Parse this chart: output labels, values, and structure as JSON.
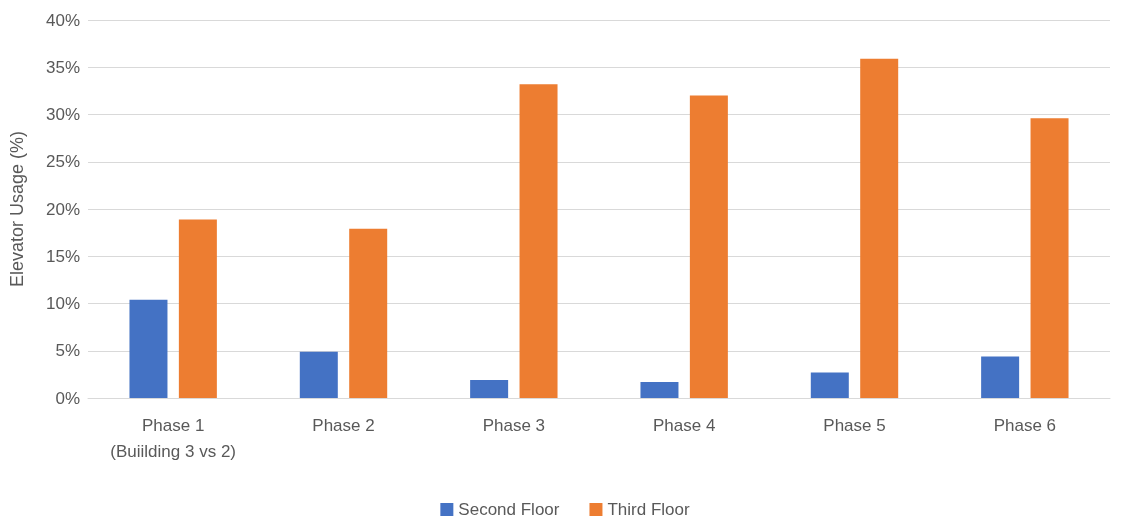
{
  "chart_data": {
    "type": "bar",
    "ylabel": "Elevator Usage (%)",
    "categories": [
      "Phase 1\n(Buiilding 3 vs 2)",
      "Phase 2",
      "Phase 3",
      "Phase 4",
      "Phase 5",
      "Phase 6"
    ],
    "series": [
      {
        "name": "Second Floor",
        "color": "#4472c4",
        "values": [
          10.4,
          4.9,
          1.9,
          1.7,
          2.7,
          4.4
        ]
      },
      {
        "name": "Third Floor",
        "color": "#ed7d31",
        "values": [
          18.9,
          17.9,
          33.2,
          32.0,
          35.9,
          29.6
        ]
      }
    ],
    "ylim": [
      0,
      40
    ],
    "yticks": [
      {
        "value": 0,
        "label": "0%"
      },
      {
        "value": 5,
        "label": "5%"
      },
      {
        "value": 10,
        "label": "10%"
      },
      {
        "value": 15,
        "label": "15%"
      },
      {
        "value": 20,
        "label": "20%"
      },
      {
        "value": 25,
        "label": "25%"
      },
      {
        "value": 30,
        "label": "30%"
      },
      {
        "value": 35,
        "label": "35%"
      },
      {
        "value": 40,
        "label": "40%"
      }
    ],
    "grid": "y",
    "legend": "bottom"
  }
}
